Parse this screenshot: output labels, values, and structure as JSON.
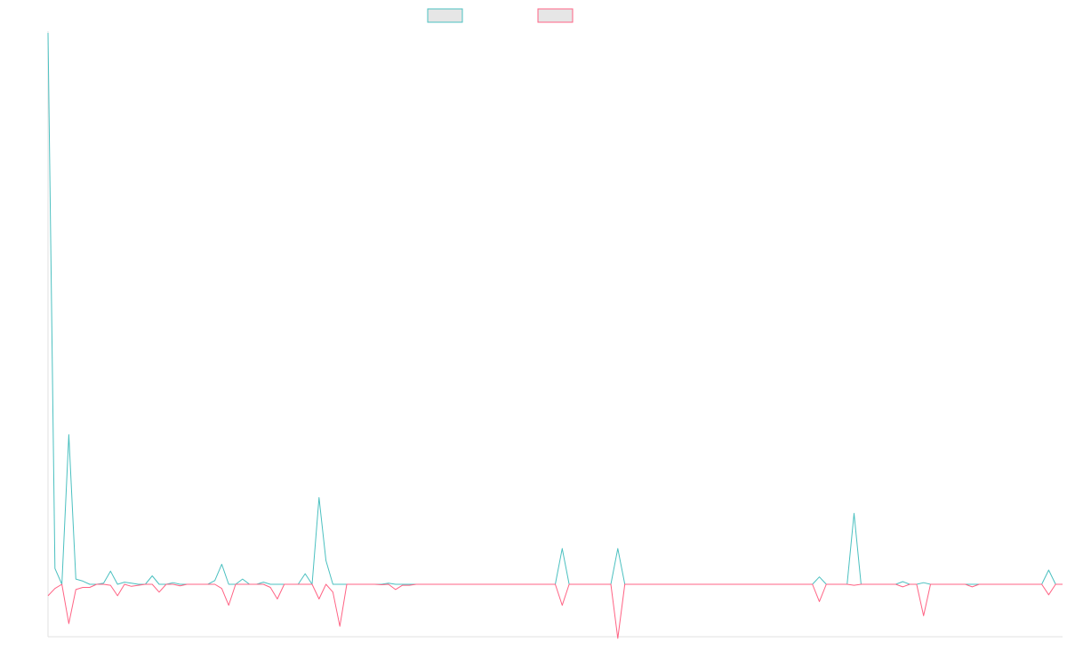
{
  "chart_data": {
    "type": "line",
    "title": "",
    "xlabel": "",
    "ylabel": "",
    "legend_position": "top-center",
    "grid": false,
    "ylim": [
      -100,
      1050
    ],
    "series": [
      {
        "name": "",
        "color": "#4bc0c0",
        "fill": "#e6e6e6",
        "values": [
          1050,
          30,
          0,
          285,
          10,
          6,
          0,
          0,
          2,
          25,
          0,
          4,
          2,
          0,
          0,
          16,
          0,
          0,
          3,
          0,
          0,
          0,
          0,
          0,
          7,
          38,
          0,
          0,
          10,
          0,
          0,
          4,
          0,
          0,
          0,
          0,
          0,
          20,
          0,
          165,
          45,
          0,
          0,
          0,
          0,
          0,
          0,
          0,
          0,
          2,
          0,
          0,
          0,
          0,
          0,
          0,
          0,
          0,
          0,
          0,
          0,
          0,
          0,
          0,
          0,
          0,
          0,
          0,
          0,
          0,
          0,
          0,
          0,
          0,
          68,
          0,
          0,
          0,
          0,
          0,
          0,
          0,
          68,
          0,
          0,
          0,
          0,
          0,
          0,
          0,
          0,
          0,
          0,
          0,
          0,
          0,
          0,
          0,
          0,
          0,
          0,
          0,
          0,
          0,
          0,
          0,
          0,
          0,
          0,
          0,
          0,
          14,
          0,
          0,
          0,
          0,
          135,
          0,
          0,
          0,
          0,
          0,
          0,
          5,
          0,
          0,
          3,
          0,
          0,
          0,
          0,
          0,
          0,
          0,
          0,
          0,
          0,
          0,
          0,
          0,
          0,
          0,
          0,
          0,
          27,
          0,
          0
        ]
      },
      {
        "name": "",
        "color": "#ff6384",
        "fill": "#e6e6e6",
        "values": [
          -22,
          -8,
          0,
          -75,
          -10,
          -6,
          -6,
          0,
          0,
          -2,
          -22,
          0,
          -4,
          -2,
          0,
          0,
          -15,
          0,
          0,
          -3,
          0,
          0,
          0,
          0,
          0,
          -8,
          -40,
          0,
          0,
          0,
          0,
          0,
          -6,
          -28,
          0,
          0,
          0,
          0,
          0,
          -28,
          0,
          -15,
          -80,
          0,
          0,
          0,
          0,
          0,
          -1,
          0,
          -10,
          -2,
          -2,
          0,
          0,
          0,
          0,
          0,
          0,
          0,
          0,
          0,
          0,
          0,
          0,
          0,
          0,
          0,
          0,
          0,
          0,
          0,
          0,
          0,
          -40,
          0,
          0,
          0,
          0,
          0,
          0,
          0,
          -103,
          0,
          0,
          0,
          0,
          0,
          0,
          0,
          0,
          0,
          0,
          0,
          0,
          0,
          0,
          0,
          0,
          0,
          0,
          0,
          0,
          0,
          0,
          0,
          0,
          0,
          0,
          0,
          0,
          -33,
          0,
          0,
          0,
          0,
          -2,
          0,
          0,
          0,
          0,
          0,
          0,
          -5,
          0,
          0,
          -60,
          0,
          0,
          0,
          0,
          0,
          0,
          -5,
          0,
          0,
          0,
          0,
          0,
          0,
          0,
          0,
          0,
          0,
          -20,
          0,
          0
        ]
      }
    ]
  }
}
